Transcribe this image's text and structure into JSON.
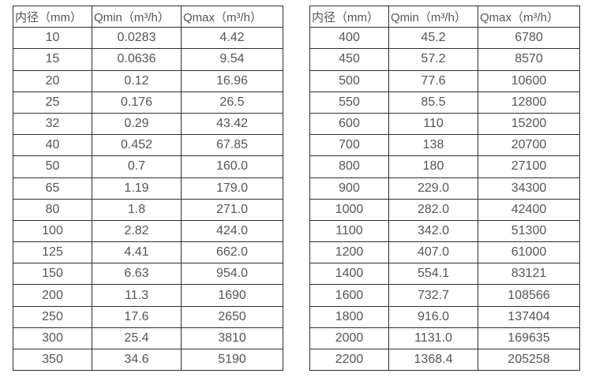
{
  "colors": {
    "background": "#ffffff",
    "border": "#2e2e2e",
    "text": "#555555"
  },
  "table_left": {
    "headers": [
      "内径（mm）",
      "Qmin（m³/h）",
      "Qmax（m³/h）"
    ],
    "rows": [
      [
        "10",
        "0.0283",
        "4.42"
      ],
      [
        "15",
        "0.0636",
        "9.54"
      ],
      [
        "20",
        "0.12",
        "16.96"
      ],
      [
        "25",
        "0.176",
        "26.5"
      ],
      [
        "32",
        "0.29",
        "43.42"
      ],
      [
        "40",
        "0.452",
        "67.85"
      ],
      [
        "50",
        "0.7",
        "160.0"
      ],
      [
        "65",
        "1.19",
        "179.0"
      ],
      [
        "80",
        "1.8",
        "271.0"
      ],
      [
        "100",
        "2.82",
        "424.0"
      ],
      [
        "125",
        "4.41",
        "662.0"
      ],
      [
        "150",
        "6.63",
        "954.0"
      ],
      [
        "200",
        "11.3",
        "1690"
      ],
      [
        "250",
        "17.6",
        "2650"
      ],
      [
        "300",
        "25.4",
        "3810"
      ],
      [
        "350",
        "34.6",
        "5190"
      ]
    ]
  },
  "table_right": {
    "headers": [
      "内径（mm）",
      "Qmin（m³/h）",
      "Qmax（m³/h）"
    ],
    "rows": [
      [
        "400",
        "45.2",
        "6780"
      ],
      [
        "450",
        "57.2",
        "8570"
      ],
      [
        "500",
        "77.6",
        "10600"
      ],
      [
        "550",
        "85.5",
        "12800"
      ],
      [
        "600",
        "110",
        "15200"
      ],
      [
        "700",
        "138",
        "20700"
      ],
      [
        "800",
        "180",
        "27100"
      ],
      [
        "900",
        "229.0",
        "34300"
      ],
      [
        "1000",
        "282.0",
        "42400"
      ],
      [
        "1100",
        "342.0",
        "51300"
      ],
      [
        "1200",
        "407.0",
        "61000"
      ],
      [
        "1400",
        "554.1",
        "83121"
      ],
      [
        "1600",
        "732.7",
        "108566"
      ],
      [
        "1800",
        "916.0",
        "137404"
      ],
      [
        "2000",
        "1131.0",
        "169635"
      ],
      [
        "2200",
        "1368.4",
        "205258"
      ]
    ]
  }
}
